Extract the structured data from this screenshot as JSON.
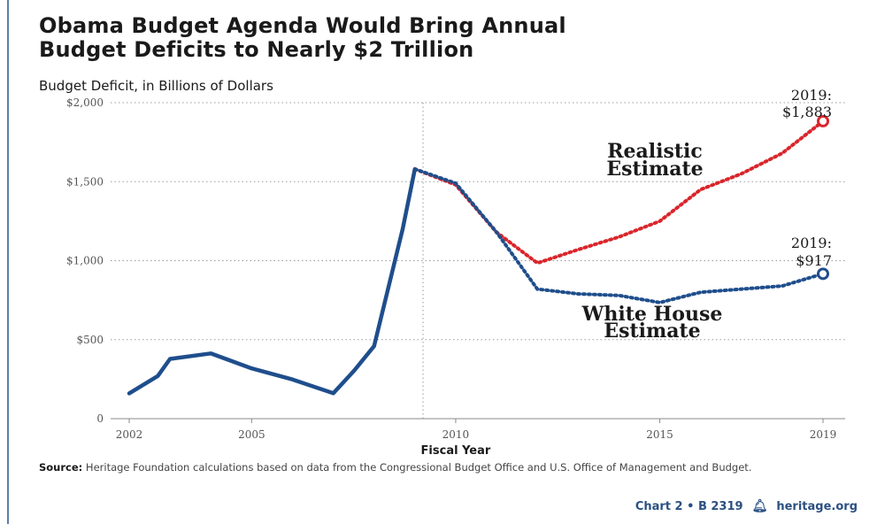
{
  "title_line1": "Obama Budget Agenda Would Bring Annual",
  "title_line2": "Budget Deficits to Nearly $2 Trillion",
  "subtitle": "Budget Deficit, in Billions of Dollars",
  "source_label": "Source:",
  "source_text": "Heritage Foundation calculations based on data from the Congressional Budget Office and U.S. Office of Management and Budget.",
  "footer": {
    "chart_id": "Chart 2 • B 2319",
    "site": "heritage.org",
    "logo_icon": "liberty-bell-icon"
  },
  "colors": {
    "historical": "#1f4e8c",
    "realistic": "#d9262c",
    "white_house": "#1f4e8c",
    "grid": "#9a9a9a"
  },
  "chart_data": {
    "type": "line",
    "xlabel": "Fiscal Year",
    "ylabel": "",
    "xlim": [
      2002,
      2019
    ],
    "ylim": [
      0,
      2000
    ],
    "x_ticks": [
      2002,
      2005,
      2010,
      2015,
      2019
    ],
    "x_tick_labels": [
      "2002",
      "2005",
      "2010",
      "2015",
      "2019"
    ],
    "y_ticks": [
      0,
      500,
      1000,
      1500,
      2000
    ],
    "y_tick_labels": [
      "0",
      "$500",
      "$1,000",
      "$1,500",
      "$2,000"
    ],
    "grid": "horizontal dotted",
    "divider_x": 2009.2,
    "series": [
      {
        "key": "historical",
        "values": [
          [
            2002,
            160
          ],
          [
            2002.7,
            270
          ],
          [
            2003,
            378
          ],
          [
            2004,
            413
          ],
          [
            2005,
            318
          ],
          [
            2006,
            248
          ],
          [
            2007,
            161
          ],
          [
            2007.5,
            300
          ],
          [
            2008,
            459
          ],
          [
            2008.7,
            1200
          ],
          [
            2009,
            1580
          ]
        ]
      },
      {
        "key": "realistic",
        "name": "Realistic Estimate",
        "values": [
          [
            2009,
            1580
          ],
          [
            2010,
            1480
          ],
          [
            2011,
            1180
          ],
          [
            2012,
            985
          ],
          [
            2013,
            1070
          ],
          [
            2014,
            1150
          ],
          [
            2015,
            1250
          ],
          [
            2016,
            1450
          ],
          [
            2017,
            1550
          ],
          [
            2018,
            1680
          ],
          [
            2019,
            1883
          ]
        ]
      },
      {
        "key": "white_house",
        "name": "White House Estimate",
        "values": [
          [
            2009,
            1580
          ],
          [
            2010,
            1490
          ],
          [
            2011,
            1180
          ],
          [
            2012,
            820
          ],
          [
            2013,
            790
          ],
          [
            2014,
            780
          ],
          [
            2015,
            735
          ],
          [
            2016,
            800
          ],
          [
            2017,
            820
          ],
          [
            2018,
            840
          ],
          [
            2019,
            917
          ]
        ]
      }
    ],
    "annotations": {
      "realistic_end": {
        "line1": "2019:",
        "line2": "$1,883"
      },
      "white_house_end": {
        "line1": "2019:",
        "line2": "$917"
      },
      "realistic_label": {
        "line1": "Realistic",
        "line2": "Estimate"
      },
      "white_house_label": {
        "line1": "White House",
        "line2": "Estimate"
      }
    }
  }
}
